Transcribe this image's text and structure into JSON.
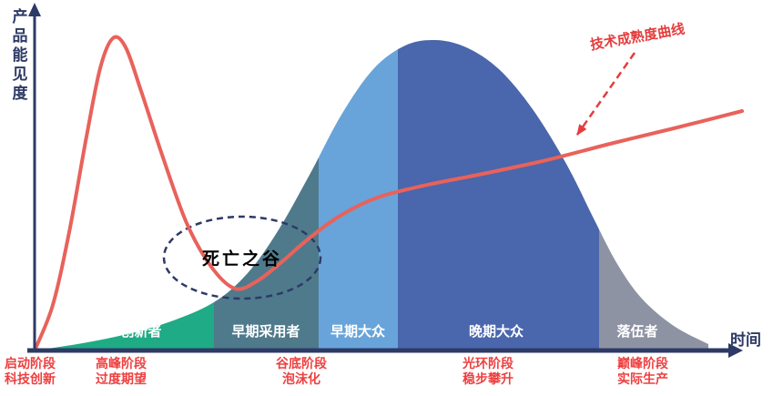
{
  "axes": {
    "y_label": "产品能见度",
    "x_label": "时间"
  },
  "colors": {
    "axis": "#2d3a66",
    "hype_curve": "#e8625b",
    "annotation_red": "#e63c3c",
    "stage_text": "#ed4040",
    "segment_label_text": "#ffffff",
    "valley_text": "#000000"
  },
  "chart_data": {
    "type": "area",
    "x_axis_label": "时间",
    "y_axis_label": "产品能见度",
    "baseline_y": 385,
    "adoption_segments": [
      {
        "label": "创新者",
        "x_range": [
          38,
          235
        ],
        "color": "#1fab85",
        "label_x": 155
      },
      {
        "label": "早期采用者",
        "x_range": [
          235,
          350
        ],
        "color": "#4f7a8c",
        "label_x": 292
      },
      {
        "label": "早期大众",
        "x_range": [
          350,
          437
        ],
        "color": "#68a4d9",
        "label_x": 393
      },
      {
        "label": "晚期大众",
        "x_range": [
          437,
          658
        ],
        "color": "#4a66ac",
        "label_x": 545
      },
      {
        "label": "落伍者",
        "x_range": [
          658,
          778
        ],
        "color": "#8e93a4",
        "label_x": 700
      }
    ],
    "bell_curve_points": [
      [
        38,
        385
      ],
      [
        85,
        378
      ],
      [
        135,
        368
      ],
      [
        185,
        354
      ],
      [
        235,
        332
      ],
      [
        272,
        300
      ],
      [
        305,
        254
      ],
      [
        340,
        192
      ],
      [
        375,
        126
      ],
      [
        410,
        76
      ],
      [
        445,
        50
      ],
      [
        478,
        44
      ],
      [
        512,
        52
      ],
      [
        548,
        76
      ],
      [
        585,
        120
      ],
      [
        622,
        180
      ],
      [
        652,
        240
      ],
      [
        678,
        290
      ],
      [
        705,
        328
      ],
      [
        740,
        358
      ],
      [
        778,
        378
      ]
    ],
    "hype_curve_points": [
      [
        38,
        385
      ],
      [
        58,
        335
      ],
      [
        76,
        255
      ],
      [
        95,
        150
      ],
      [
        110,
        75
      ],
      [
        124,
        42
      ],
      [
        138,
        52
      ],
      [
        155,
        100
      ],
      [
        178,
        170
      ],
      [
        205,
        245
      ],
      [
        232,
        293
      ],
      [
        258,
        317
      ],
      [
        282,
        309
      ],
      [
        308,
        289
      ],
      [
        338,
        263
      ],
      [
        372,
        238
      ],
      [
        412,
        218
      ],
      [
        465,
        204
      ],
      [
        530,
        191
      ],
      [
        600,
        176
      ],
      [
        670,
        158
      ],
      [
        740,
        141
      ],
      [
        815,
        122
      ]
    ],
    "stages": [
      {
        "phase": "启动阶段",
        "desc": "科技创新",
        "x": 33
      },
      {
        "phase": "高峰阶段",
        "desc": "过度期望",
        "x": 133
      },
      {
        "phase": "谷底阶段",
        "desc": "泡沫化",
        "x": 331
      },
      {
        "phase": "光环阶段",
        "desc": "稳步攀升",
        "x": 536
      },
      {
        "phase": "巅峰阶段",
        "desc": "实际生产",
        "x": 706
      }
    ],
    "valley_annotation": {
      "text": "死亡之谷",
      "ellipse": {
        "cx": 266,
        "cy": 283,
        "rx": 86,
        "ry": 45
      }
    },
    "curve_annotation": {
      "text": "技术成熟度曲线",
      "arrow_from": [
        697,
        58
      ],
      "arrow_to": [
        634,
        148
      ],
      "rotation_deg": -10
    }
  }
}
